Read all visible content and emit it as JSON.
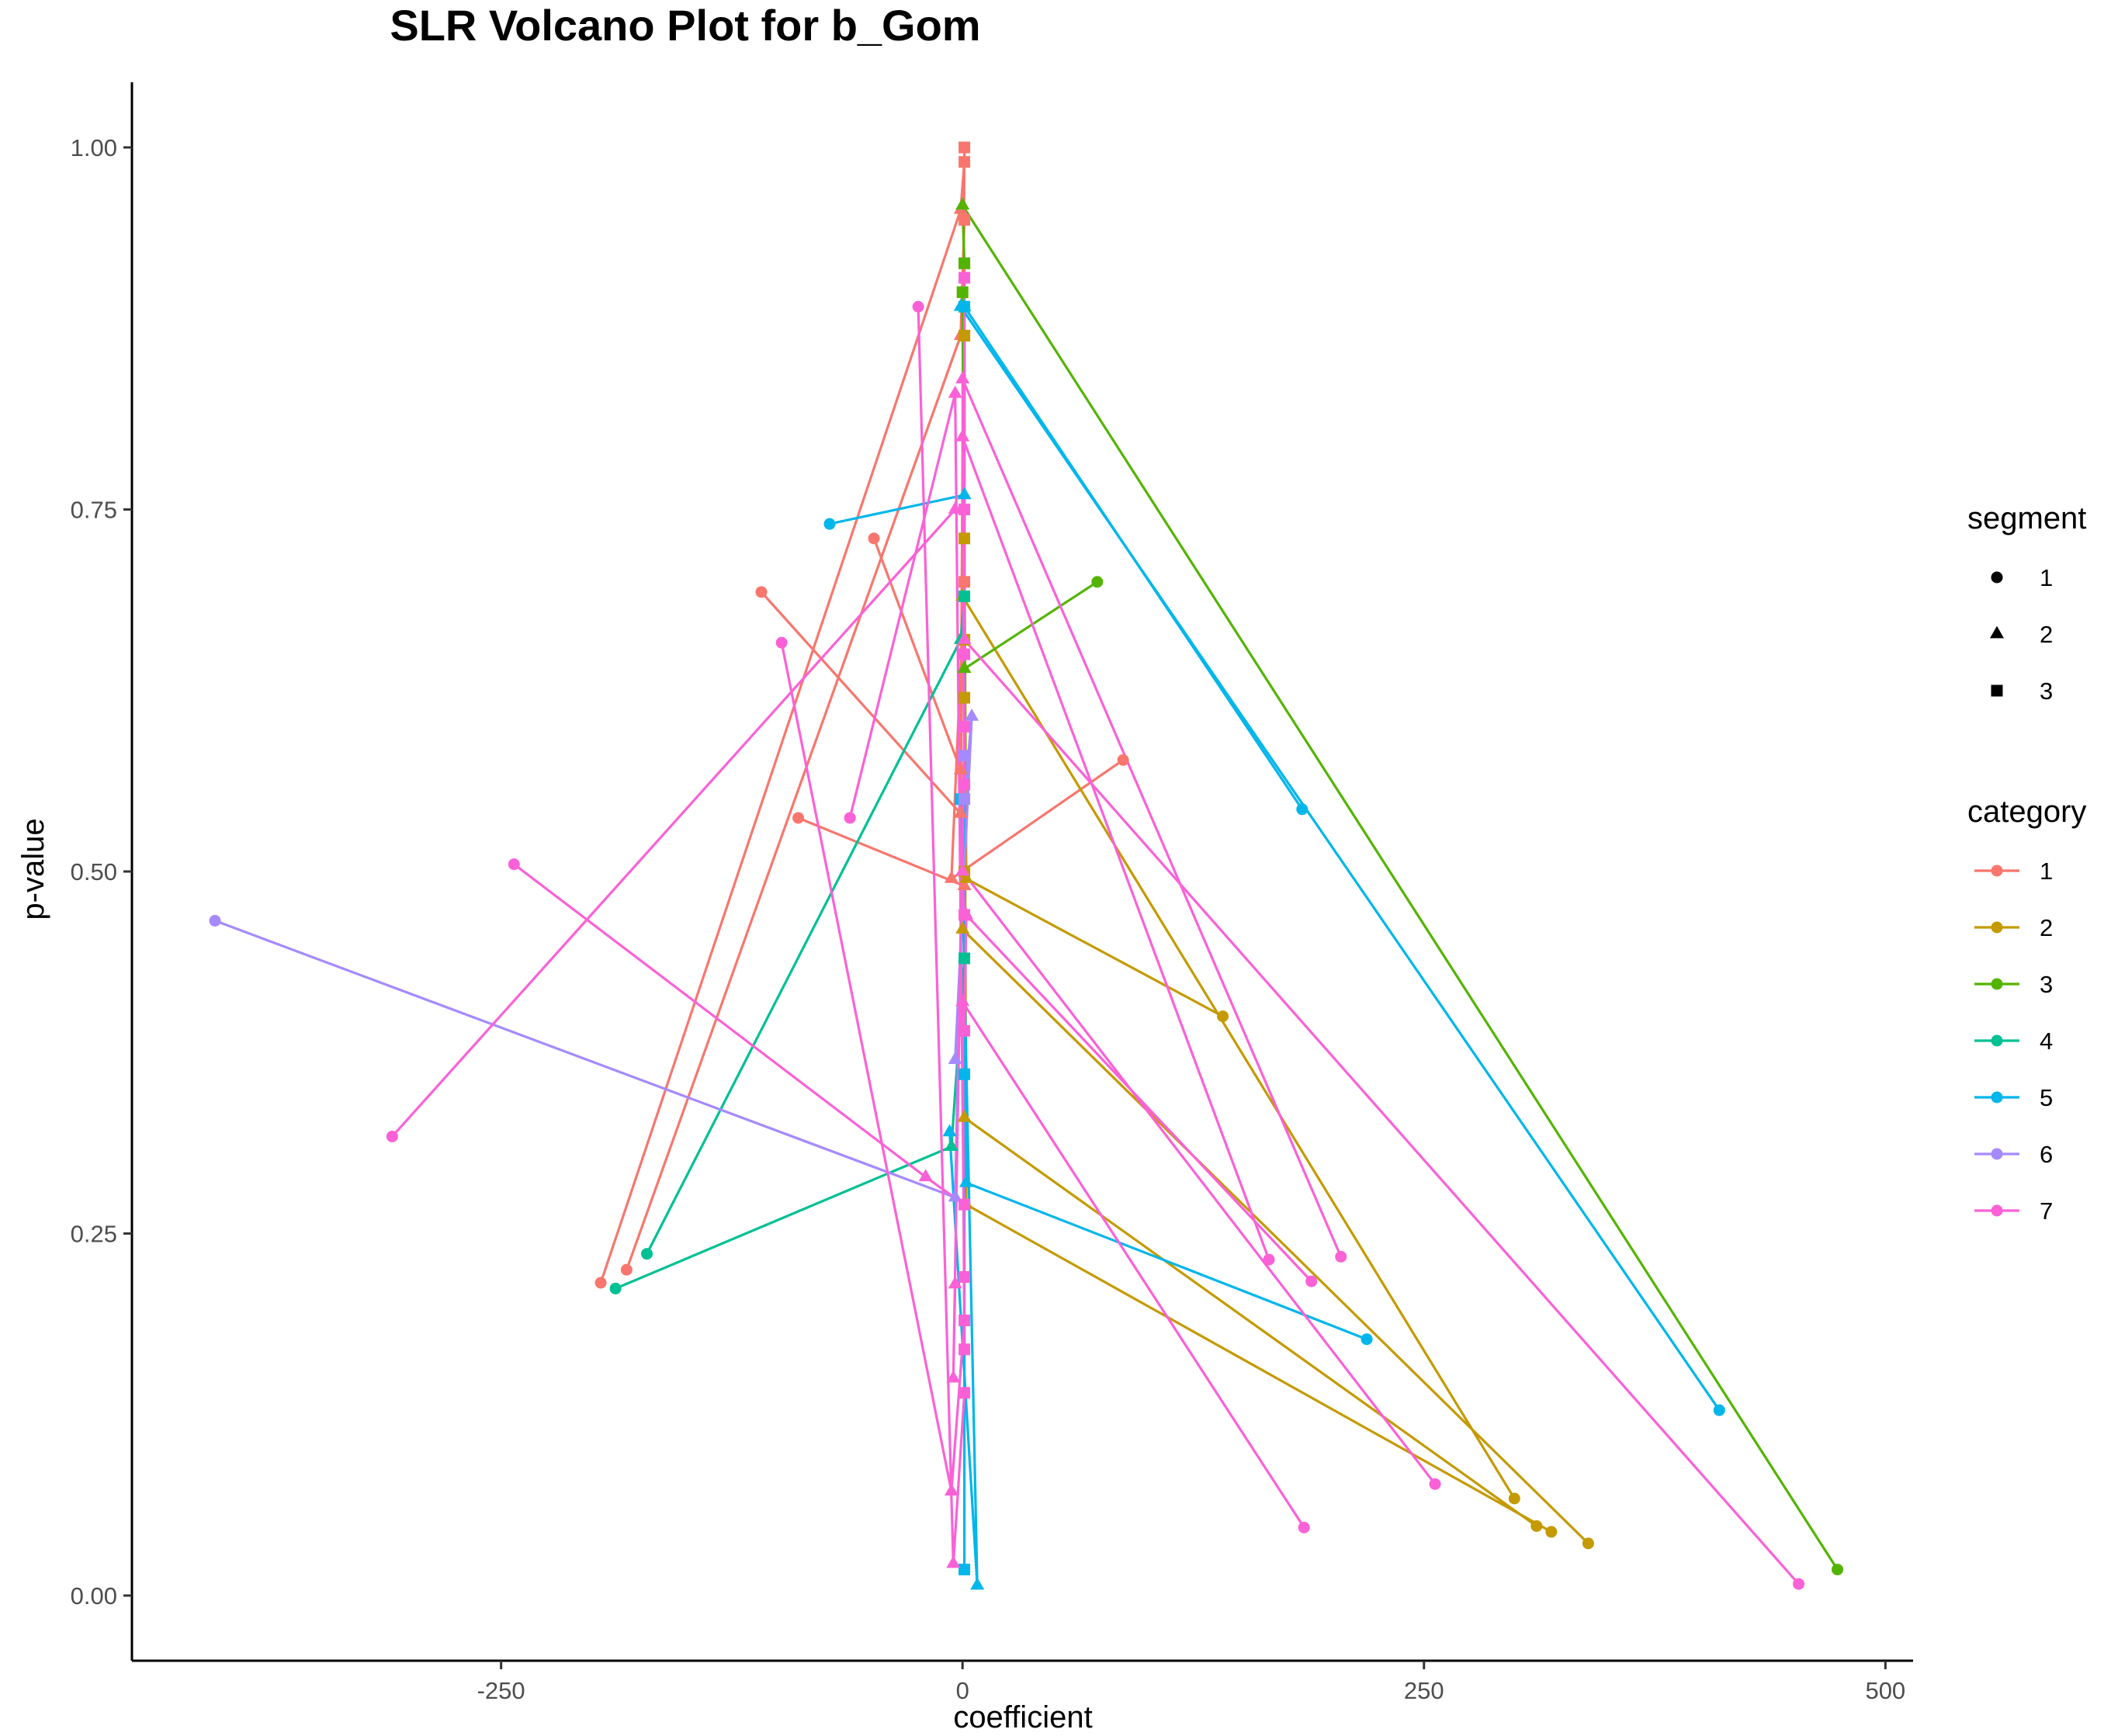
{
  "chart_data": {
    "type": "line",
    "title": "SLR Volcano Plot for b_Gom",
    "xlabel": "coefficient",
    "ylabel": "p-value",
    "xlim": [
      -450,
      515
    ],
    "ylim": [
      -0.045,
      1.045
    ],
    "x_ticks": [
      {
        "value": -250,
        "label": "-250"
      },
      {
        "value": 0,
        "label": "0"
      },
      {
        "value": 250,
        "label": "250"
      },
      {
        "value": 500,
        "label": "500"
      }
    ],
    "y_ticks": [
      {
        "value": 0,
        "label": "0.00"
      },
      {
        "value": 0.25,
        "label": "0.25"
      },
      {
        "value": 0.5,
        "label": "0.50"
      },
      {
        "value": 0.75,
        "label": "0.75"
      },
      {
        "value": 1,
        "label": "1.00"
      }
    ],
    "grid": false,
    "legend_position": "right",
    "legend": {
      "segment_title": "segment",
      "segment_items": [
        {
          "label": "1",
          "shape": "circle"
        },
        {
          "label": "2",
          "shape": "triangle"
        },
        {
          "label": "3",
          "shape": "square"
        }
      ],
      "category_title": "category",
      "category_items": [
        {
          "label": "1",
          "color": "#F8766D"
        },
        {
          "label": "2",
          "color": "#C49A00"
        },
        {
          "label": "3",
          "color": "#53B400"
        },
        {
          "label": "4",
          "color": "#00C094"
        },
        {
          "label": "5",
          "color": "#00B6EB"
        },
        {
          "label": "6",
          "color": "#A58AFF"
        },
        {
          "label": "7",
          "color": "#FB61D7"
        }
      ]
    },
    "series": [
      {
        "category": "1",
        "points": [
          [
            -196,
            0.216,
            1
          ],
          [
            -1,
            0.957,
            2
          ],
          [
            1,
            0.99,
            3
          ]
        ]
      },
      {
        "category": "1",
        "points": [
          [
            -182,
            0.225,
            1
          ],
          [
            -1,
            0.87,
            2
          ],
          [
            1,
            0.95,
            3
          ]
        ]
      },
      {
        "category": "1",
        "points": [
          [
            -109,
            0.693,
            1
          ],
          [
            -1,
            0.54,
            2
          ],
          [
            1,
            0.92,
            3
          ]
        ]
      },
      {
        "category": "1",
        "points": [
          [
            -89,
            0.537,
            1
          ],
          [
            1,
            0.49,
            2
          ],
          [
            1,
            0.87,
            3
          ]
        ]
      },
      {
        "category": "1",
        "points": [
          [
            87,
            0.577,
            1
          ],
          [
            -6,
            0.495,
            2
          ],
          [
            1,
            0.7,
            3
          ]
        ]
      },
      {
        "category": "1",
        "points": [
          [
            -48,
            0.73,
            1
          ],
          [
            -1,
            0.57,
            2
          ],
          [
            1,
            1.0,
            3
          ]
        ]
      },
      {
        "category": "2",
        "points": [
          [
            299,
            0.067,
            1
          ],
          [
            0,
            0.69,
            2
          ],
          [
            1,
            0.87,
            3
          ]
        ]
      },
      {
        "category": "2",
        "points": [
          [
            311,
            0.048,
            1
          ],
          [
            1,
            0.33,
            2
          ],
          [
            1,
            0.62,
            3
          ]
        ]
      },
      {
        "category": "2",
        "points": [
          [
            319,
            0.044,
            1
          ],
          [
            2,
            0.27,
            2
          ],
          [
            1,
            0.66,
            3
          ]
        ]
      },
      {
        "category": "2",
        "points": [
          [
            339,
            0.036,
            1
          ],
          [
            0,
            0.46,
            2
          ],
          [
            1,
            0.5,
            3
          ]
        ]
      },
      {
        "category": "2",
        "points": [
          [
            141,
            0.4,
            1
          ],
          [
            2,
            0.495,
            2
          ],
          [
            1,
            0.73,
            3
          ]
        ]
      },
      {
        "category": "3",
        "points": [
          [
            474,
            0.018,
            1
          ],
          [
            0,
            0.96,
            2
          ],
          [
            1,
            0.92,
            3
          ]
        ]
      },
      {
        "category": "3",
        "points": [
          [
            73,
            0.7,
            1
          ],
          [
            1,
            0.64,
            2
          ],
          [
            0,
            0.9,
            3
          ]
        ]
      },
      {
        "category": "4",
        "points": [
          [
            -171,
            0.236,
            1
          ],
          [
            -1,
            0.66,
            2
          ],
          [
            1,
            0.69,
            3
          ]
        ]
      },
      {
        "category": "4",
        "points": [
          [
            -188,
            0.212,
            1
          ],
          [
            -6,
            0.31,
            2
          ],
          [
            1,
            0.44,
            3
          ]
        ]
      },
      {
        "category": "5",
        "points": [
          [
            -72,
            0.74,
            1
          ],
          [
            1,
            0.76,
            2
          ],
          [
            1,
            0.56,
            3
          ]
        ]
      },
      {
        "category": "5",
        "points": [
          [
            184,
            0.543,
            1
          ],
          [
            1,
            0.89,
            2
          ],
          [
            1,
            0.018,
            3
          ]
        ]
      },
      {
        "category": "5",
        "points": [
          [
            410,
            0.128,
            1
          ],
          [
            -1,
            0.89,
            2
          ],
          [
            1,
            0.89,
            3
          ]
        ]
      },
      {
        "category": "5",
        "points": [
          [
            219,
            0.177,
            1
          ],
          [
            2,
            0.285,
            2
          ],
          [
            1,
            0.36,
            3
          ]
        ]
      },
      {
        "category": "5",
        "points": [
          [
            -7,
            0.32,
            2
          ],
          [
            8,
            0.007,
            2
          ],
          [
            -1,
            0.55,
            3
          ]
        ]
      },
      {
        "category": "6",
        "points": [
          [
            -405,
            0.466,
            1
          ],
          [
            -4,
            0.275,
            2
          ],
          [
            1,
            0.58,
            3
          ]
        ]
      },
      {
        "category": "6",
        "points": [
          [
            -4,
            0.37,
            2
          ],
          [
            5,
            0.607,
            2
          ],
          [
            1,
            0.55,
            3
          ]
        ]
      },
      {
        "category": "7",
        "points": [
          [
            -309,
            0.317,
            1
          ],
          [
            -4,
            0.75,
            2
          ],
          [
            1,
            0.75,
            3
          ]
        ]
      },
      {
        "category": "7",
        "points": [
          [
            -243,
            0.505,
            1
          ],
          [
            -20,
            0.289,
            2
          ],
          [
            1,
            0.27,
            3
          ]
        ]
      },
      {
        "category": "7",
        "points": [
          [
            -98,
            0.658,
            1
          ],
          [
            -6,
            0.072,
            2
          ],
          [
            1,
            0.19,
            3
          ]
        ]
      },
      {
        "category": "7",
        "points": [
          [
            -61,
            0.537,
            1
          ],
          [
            -4,
            0.83,
            2
          ],
          [
            1,
            0.22,
            3
          ]
        ]
      },
      {
        "category": "7",
        "points": [
          [
            -24,
            0.89,
            1
          ],
          [
            -5,
            0.022,
            2
          ],
          [
            1,
            0.14,
            3
          ]
        ]
      },
      {
        "category": "7",
        "points": [
          [
            166,
            0.232,
            1
          ],
          [
            0,
            0.8,
            2
          ],
          [
            1,
            0.56,
            3
          ]
        ]
      },
      {
        "category": "7",
        "points": [
          [
            185,
            0.047,
            1
          ],
          [
            0,
            0.41,
            2
          ],
          [
            1,
            0.17,
            3
          ]
        ]
      },
      {
        "category": "7",
        "points": [
          [
            205,
            0.234,
            1
          ],
          [
            0,
            0.84,
            2
          ],
          [
            1,
            0.65,
            3
          ]
        ]
      },
      {
        "category": "7",
        "points": [
          [
            256,
            0.077,
            1
          ],
          [
            0,
            0.5,
            2
          ],
          [
            1,
            0.47,
            3
          ]
        ]
      },
      {
        "category": "7",
        "points": [
          [
            453,
            0.008,
            1
          ],
          [
            1,
            0.66,
            2
          ],
          [
            1,
            0.91,
            3
          ]
        ]
      },
      {
        "category": "7",
        "points": [
          [
            189,
            0.217,
            1
          ],
          [
            2,
            0.47,
            2
          ],
          [
            1,
            0.39,
            3
          ]
        ]
      },
      {
        "category": "7",
        "points": [
          [
            -4,
            0.215,
            2
          ],
          [
            -5,
            0.15,
            2
          ],
          [
            1,
            0.6,
            3
          ]
        ]
      }
    ]
  }
}
